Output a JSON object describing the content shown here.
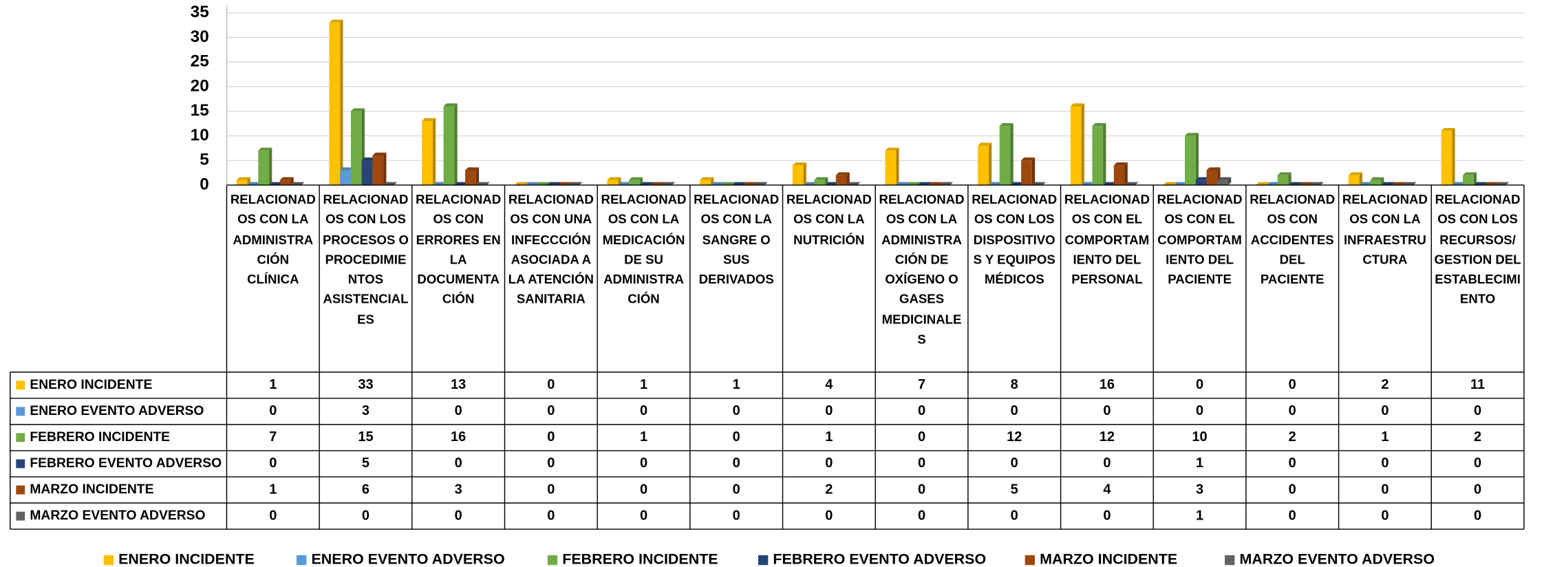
{
  "chart_data": {
    "type": "bar",
    "categories": [
      "RELACIONADOS CON LA ADMINISTRACIÓN CLÍNICA",
      "RELACIONADOS CON LOS PROCESOS O PROCEDIMIENTOS ASISTENCIALES",
      "RELACIONADOS CON ERRORES EN LA DOCUMENTACIÓN",
      "RELACIONADOS CON UNA INFECCCIÓN ASOCIADA A LA ATENCIÓN SANITARIA",
      "RELACIONADOS CON LA MEDICACIÓN DE SU ADMINISTRACIÓN",
      "RELACIONADOS CON LA SANGRE O SUS DERIVADOS",
      "RELACIONADOS CON LA NUTRICIÓN",
      "RELACIONADOS CON LA ADMINISTRACIÓN DE OXÍGENO O GASES MEDICINALES",
      "RELACIONADOS CON LOS DISPOSITIVOS Y EQUIPOS MÉDICOS",
      "RELACIONADOS CON EL COMPORTAMIENTO DEL PERSONAL",
      "RELACIONADOS CON EL COMPORTAMIENTO DEL PACIENTE",
      "RELACIONADOS CON ACCIDENTES DEL PACIENTE",
      "RELACIONADOS CON LA INFRAESTRUCTURA",
      "RELACIONADOS CON LOS RECURSOS/ GESTION DEL ESTABLECIMIENTO"
    ],
    "series": [
      {
        "name": "ENERO INCIDENTE",
        "color": "#FFC000",
        "values": [
          1,
          33,
          13,
          0,
          1,
          1,
          4,
          7,
          8,
          16,
          0,
          0,
          2,
          11
        ]
      },
      {
        "name": "ENERO EVENTO ADVERSO",
        "color": "#5B9BD5",
        "values": [
          0,
          3,
          0,
          0,
          0,
          0,
          0,
          0,
          0,
          0,
          0,
          0,
          0,
          0
        ]
      },
      {
        "name": "FEBRERO INCIDENTE",
        "color": "#70AD47",
        "values": [
          7,
          15,
          16,
          0,
          1,
          0,
          1,
          0,
          12,
          12,
          10,
          2,
          1,
          2
        ]
      },
      {
        "name": "FEBRERO EVENTO ADVERSO",
        "color": "#264478",
        "values": [
          0,
          5,
          0,
          0,
          0,
          0,
          0,
          0,
          0,
          0,
          1,
          0,
          0,
          0
        ]
      },
      {
        "name": "MARZO INCIDENTE",
        "color": "#9E480E",
        "values": [
          1,
          6,
          3,
          0,
          0,
          0,
          2,
          0,
          5,
          4,
          3,
          0,
          0,
          0
        ]
      },
      {
        "name": "MARZO EVENTO ADVERSO",
        "color": "#636363",
        "values": [
          0,
          0,
          0,
          0,
          0,
          0,
          0,
          0,
          0,
          0,
          1,
          0,
          0,
          0
        ]
      }
    ],
    "ylim": [
      0,
      35
    ],
    "yticks": [
      0,
      5,
      10,
      15,
      20,
      25,
      30,
      35
    ],
    "grid": true,
    "legend": "bottom"
  }
}
